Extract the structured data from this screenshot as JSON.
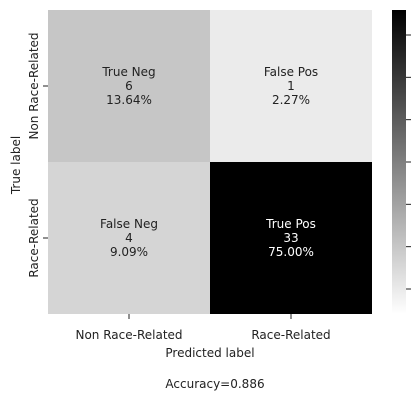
{
  "chart_data": {
    "type": "heatmap",
    "title": "",
    "xlabel": "Predicted label",
    "ylabel": "True label",
    "x_categories": [
      "Non Race-Related",
      "Race-Related"
    ],
    "y_categories": [
      "Non Race-Related",
      "Race-Related"
    ],
    "cells": [
      [
        {
          "name": "True Neg",
          "count": 6,
          "percent": "13.64%"
        },
        {
          "name": "False Pos",
          "count": 1,
          "percent": "2.27%"
        }
      ],
      [
        {
          "name": "False Neg",
          "count": 4,
          "percent": "9.09%"
        },
        {
          "name": "True Pos",
          "count": 33,
          "percent": "75.00%"
        }
      ]
    ],
    "color_scale": {
      "min": 1,
      "max": 33,
      "low_color": "#ffffff",
      "high_color": "#000000"
    },
    "colorbar_ticks": 7,
    "footer": "Accuracy=0.886"
  }
}
